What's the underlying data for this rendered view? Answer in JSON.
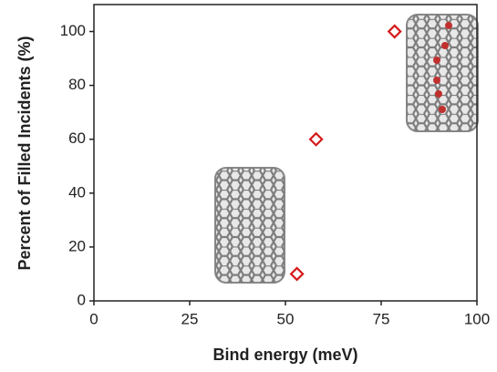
{
  "chart_data": {
    "type": "scatter",
    "xlabel": "Bind energy (meV)",
    "ylabel": "Percent of Filled Incidents (%)",
    "series": [
      {
        "color": "#d61a1a",
        "x": [
          53,
          58,
          78.5
        ],
        "values": [
          10,
          60,
          100
        ]
      }
    ],
    "xlim": [
      0,
      100
    ],
    "xticks": [
      0,
      25,
      50,
      75,
      100
    ],
    "ylim": [
      0,
      110
    ],
    "yticks": [
      0,
      20,
      40,
      60,
      80,
      100
    ]
  }
}
